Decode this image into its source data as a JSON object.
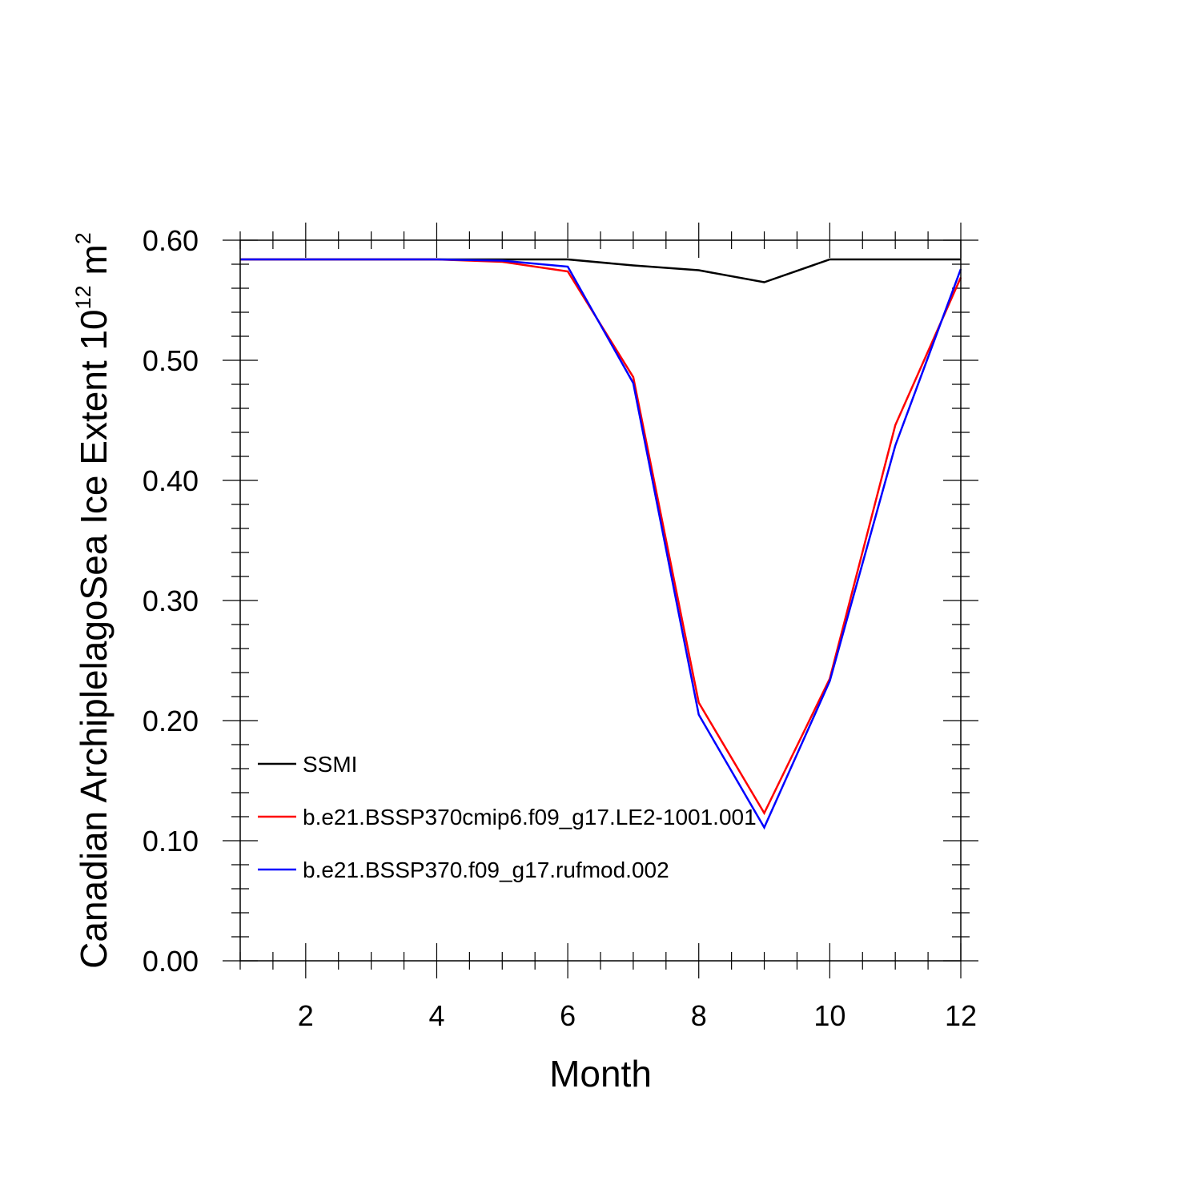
{
  "chart_data": {
    "type": "line",
    "title": "",
    "xlabel": "Month",
    "ylabel_main": "Canadian ArchiplelagoSea Ice Extent 10",
    "ylabel_exp1": "12",
    "ylabel_mid": " m",
    "ylabel_exp2": "2",
    "xlim": [
      1,
      12
    ],
    "ylim": [
      0,
      0.6
    ],
    "x": [
      1,
      2,
      3,
      4,
      5,
      6,
      7,
      8,
      9,
      10,
      11,
      12
    ],
    "x_ticks": [
      2,
      4,
      6,
      8,
      10,
      12
    ],
    "x_tick_labels": [
      "2",
      "4",
      "6",
      "8",
      "10",
      "12"
    ],
    "y_ticks": [
      0,
      0.1,
      0.2,
      0.3,
      0.4,
      0.5,
      0.6
    ],
    "y_tick_labels": [
      "0.00",
      "0.10",
      "0.20",
      "0.30",
      "0.40",
      "0.50",
      "0.60"
    ],
    "grid": false,
    "legend_position": "lower-left",
    "series": [
      {
        "name": "SSMI",
        "color": "#000000",
        "values": [
          0.584,
          0.584,
          0.584,
          0.584,
          0.584,
          0.584,
          0.579,
          0.575,
          0.565,
          0.584,
          0.584,
          0.584
        ]
      },
      {
        "name": "b.e21.BSSP370cmip6.f09_g17.LE2-1001.001",
        "color": "#ff0000",
        "values": [
          0.584,
          0.584,
          0.584,
          0.584,
          0.582,
          0.574,
          0.486,
          0.215,
          0.123,
          0.235,
          0.446,
          0.569
        ]
      },
      {
        "name": "b.e21.BSSP370.f09_g17.rufmod.002",
        "color": "#0000ff",
        "values": [
          0.584,
          0.584,
          0.584,
          0.584,
          0.583,
          0.578,
          0.481,
          0.205,
          0.111,
          0.233,
          0.429,
          0.576
        ]
      }
    ]
  }
}
